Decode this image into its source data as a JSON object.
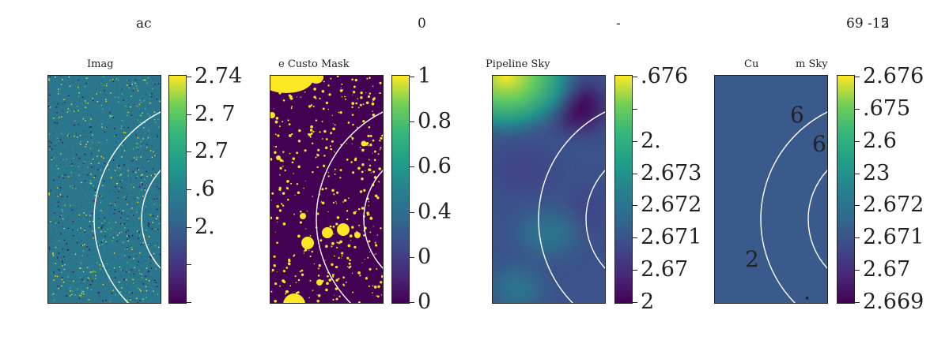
{
  "figure": {
    "suptitles": [
      "ac",
      "0",
      "-",
      "69 -15",
      "2"
    ]
  },
  "panels": [
    {
      "title": "Imag",
      "kind": "noise",
      "colorbar": {
        "ticks": [
          {
            "label": "2.74"
          },
          {
            "label": "2.   7"
          },
          {
            "label": "2.7"
          },
          {
            "label": ".6"
          },
          {
            "label": "2."
          },
          {
            "label": ""
          },
          {
            "label": ""
          }
        ]
      },
      "annotations": []
    },
    {
      "title": "e Custo Mask",
      "kind": "mask",
      "colorbar": {
        "ticks": [
          {
            "label": "1"
          },
          {
            "label": "0.8"
          },
          {
            "label": "0.6"
          },
          {
            "label": "0.4"
          },
          {
            "label": "0"
          },
          {
            "label": "0"
          }
        ]
      },
      "annotations": []
    },
    {
      "title": "Pipeline Sky",
      "kind": "smooth",
      "colorbar": {
        "ticks": [
          {
            "label": ".676"
          },
          {
            "label": ""
          },
          {
            "label": "2."
          },
          {
            "label": "2.673"
          },
          {
            "label": "2.672"
          },
          {
            "label": "2.671"
          },
          {
            "label": "2.67"
          },
          {
            "label": "2"
          }
        ]
      },
      "annotations": []
    },
    {
      "title_left": "Cu",
      "title_right": "m Sky",
      "kind": "flat",
      "colorbar": {
        "ticks": [
          {
            "label": "2.676"
          },
          {
            "label": ".675"
          },
          {
            "label": "2.6"
          },
          {
            "label": "23"
          },
          {
            "label": "2.672"
          },
          {
            "label": "2.671"
          },
          {
            "label": "2.67"
          },
          {
            "label": "2.669"
          }
        ]
      },
      "annotations": [
        "6",
        "6",
        "2",
        "."
      ]
    }
  ],
  "colors": {
    "viridis_low": "#440154",
    "viridis_mid": "#21918c",
    "viridis_high": "#fde725",
    "flat_panel": "#3b5a8c",
    "rings": "#ffffff"
  }
}
